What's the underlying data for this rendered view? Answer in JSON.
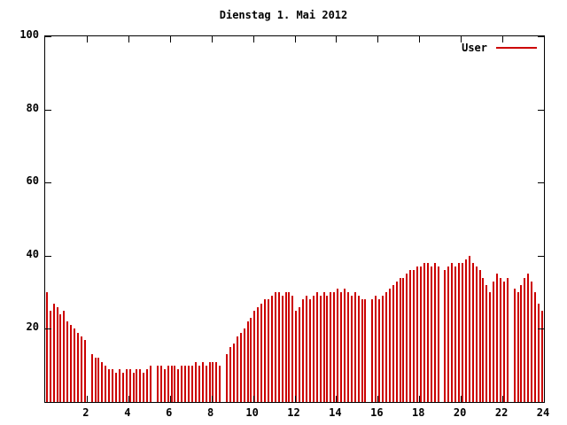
{
  "title": "Dienstag 1. Mai 2012",
  "legend": {
    "label": "User"
  },
  "colors": {
    "series": "#cc0000",
    "axis": "#000000",
    "background": "#ffffff"
  },
  "chart_data": {
    "type": "bar",
    "title": "Dienstag 1. Mai 2012",
    "xlabel": "",
    "ylabel": "",
    "xlim": [
      0,
      24
    ],
    "ylim": [
      0,
      100
    ],
    "xticks": [
      2,
      4,
      6,
      8,
      10,
      12,
      14,
      16,
      18,
      20,
      22,
      24
    ],
    "yticks": [
      20,
      40,
      60,
      80,
      100
    ],
    "grid": false,
    "legend_position": "top-right",
    "series": [
      {
        "name": "User",
        "color": "#cc0000",
        "x_start": 0,
        "x_step_hours": 0.1667,
        "values": [
          30,
          25,
          27,
          26,
          24,
          25,
          22,
          21,
          20,
          19,
          18,
          17,
          0,
          13,
          12,
          12,
          11,
          10,
          9,
          9,
          8,
          9,
          8,
          9,
          9,
          8,
          9,
          9,
          8,
          9,
          10,
          0,
          10,
          10,
          9,
          10,
          10,
          10,
          9,
          10,
          10,
          10,
          10,
          11,
          10,
          11,
          10,
          11,
          11,
          11,
          10,
          0,
          13,
          15,
          16,
          18,
          19,
          20,
          22,
          23,
          25,
          26,
          27,
          28,
          28,
          29,
          30,
          30,
          29,
          30,
          30,
          29,
          25,
          26,
          28,
          29,
          28,
          29,
          30,
          29,
          30,
          29,
          30,
          30,
          31,
          30,
          31,
          30,
          29,
          30,
          29,
          28,
          28,
          0,
          28,
          29,
          28,
          29,
          30,
          31,
          32,
          33,
          34,
          34,
          35,
          36,
          36,
          37,
          37,
          38,
          38,
          37,
          38,
          37,
          0,
          36,
          37,
          38,
          37,
          38,
          38,
          39,
          40,
          38,
          37,
          36,
          34,
          32,
          30,
          33,
          35,
          34,
          33,
          34,
          0,
          31,
          30,
          32,
          34,
          35,
          33,
          30,
          27,
          25
        ]
      }
    ]
  }
}
